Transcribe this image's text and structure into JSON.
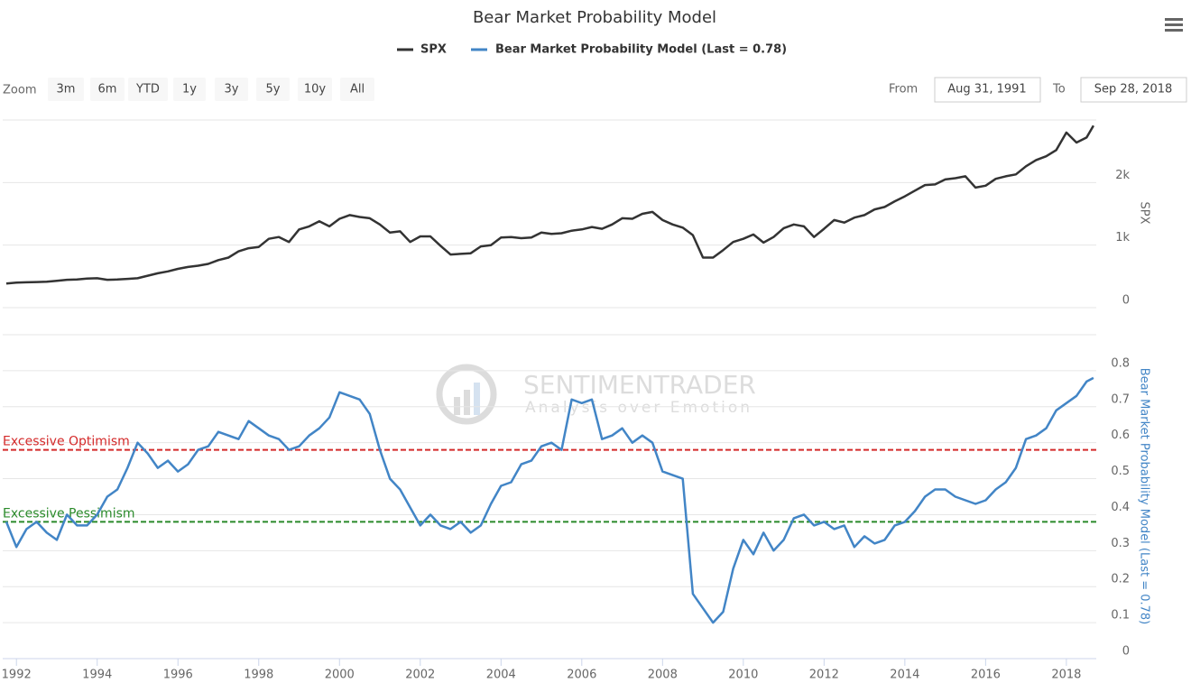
{
  "chart_data": {
    "type": "line",
    "title": "Bear Market Probability Model",
    "ylabel": "SPX",
    "y2label": "Bear Market Probability Model (Last = 0.78)",
    "x": [
      1991.75,
      1992,
      1992.25,
      1992.5,
      1992.75,
      1993,
      1993.25,
      1993.5,
      1993.75,
      1994,
      1994.25,
      1994.5,
      1994.75,
      1995,
      1995.25,
      1995.5,
      1995.75,
      1996,
      1996.25,
      1996.5,
      1996.75,
      1997,
      1997.25,
      1997.5,
      1997.75,
      1998,
      1998.25,
      1998.5,
      1998.75,
      1999,
      1999.25,
      1999.5,
      1999.75,
      2000,
      2000.25,
      2000.5,
      2000.75,
      2001,
      2001.25,
      2001.5,
      2001.75,
      2002,
      2002.25,
      2002.5,
      2002.75,
      2003,
      2003.25,
      2003.5,
      2003.75,
      2004,
      2004.25,
      2004.5,
      2004.75,
      2005,
      2005.25,
      2005.5,
      2005.75,
      2006,
      2006.25,
      2006.5,
      2006.75,
      2007,
      2007.25,
      2007.5,
      2007.75,
      2008,
      2008.25,
      2008.5,
      2008.75,
      2009,
      2009.25,
      2009.5,
      2009.75,
      2010,
      2010.25,
      2010.5,
      2010.75,
      2011,
      2011.25,
      2011.5,
      2011.75,
      2012,
      2012.25,
      2012.5,
      2012.75,
      2013,
      2013.25,
      2013.5,
      2013.75,
      2014,
      2014.25,
      2014.5,
      2014.75,
      2015,
      2015.25,
      2015.5,
      2015.75,
      2016,
      2016.25,
      2016.5,
      2016.75,
      2017,
      2017.25,
      2017.5,
      2017.75,
      2018,
      2018.25,
      2018.5,
      2018.67
    ],
    "series": [
      {
        "name": "SPX",
        "color": "#333333",
        "axis": "y",
        "values": [
          385,
          400,
          405,
          410,
          415,
          430,
          445,
          450,
          465,
          470,
          445,
          450,
          460,
          470,
          510,
          550,
          580,
          620,
          650,
          670,
          700,
          760,
          800,
          900,
          950,
          970,
          1100,
          1130,
          1050,
          1250,
          1300,
          1380,
          1300,
          1420,
          1480,
          1450,
          1430,
          1330,
          1200,
          1220,
          1050,
          1140,
          1140,
          990,
          850,
          860,
          870,
          980,
          1000,
          1120,
          1130,
          1110,
          1120,
          1200,
          1180,
          1190,
          1230,
          1250,
          1290,
          1260,
          1330,
          1430,
          1420,
          1500,
          1530,
          1400,
          1330,
          1280,
          1160,
          800,
          800,
          920,
          1050,
          1100,
          1170,
          1040,
          1130,
          1270,
          1330,
          1300,
          1130,
          1260,
          1400,
          1360,
          1440,
          1480,
          1570,
          1610,
          1700,
          1780,
          1870,
          1960,
          1970,
          2050,
          2070,
          2100,
          1920,
          1950,
          2060,
          2100,
          2130,
          2260,
          2360,
          2420,
          2520,
          2800,
          2640,
          2720,
          2910
        ]
      },
      {
        "name": "Bear Market Probability Model (Last = 0.78)",
        "color": "#4285c6",
        "axis": "y2",
        "values": [
          0.38,
          0.31,
          0.36,
          0.38,
          0.35,
          0.33,
          0.4,
          0.37,
          0.37,
          0.4,
          0.45,
          0.47,
          0.53,
          0.6,
          0.57,
          0.53,
          0.55,
          0.52,
          0.54,
          0.58,
          0.59,
          0.63,
          0.62,
          0.61,
          0.66,
          0.64,
          0.62,
          0.61,
          0.58,
          0.59,
          0.62,
          0.64,
          0.67,
          0.74,
          0.73,
          0.72,
          0.68,
          0.58,
          0.5,
          0.47,
          0.42,
          0.37,
          0.4,
          0.37,
          0.36,
          0.38,
          0.35,
          0.37,
          0.43,
          0.48,
          0.49,
          0.54,
          0.55,
          0.59,
          0.6,
          0.58,
          0.72,
          0.71,
          0.72,
          0.61,
          0.62,
          0.64,
          0.6,
          0.62,
          0.6,
          0.52,
          0.51,
          0.5,
          0.18,
          0.14,
          0.1,
          0.13,
          0.25,
          0.33,
          0.29,
          0.35,
          0.3,
          0.33,
          0.39,
          0.4,
          0.37,
          0.38,
          0.36,
          0.37,
          0.31,
          0.34,
          0.32,
          0.33,
          0.37,
          0.38,
          0.41,
          0.45,
          0.47,
          0.47,
          0.45,
          0.44,
          0.43,
          0.44,
          0.47,
          0.49,
          0.53,
          0.61,
          0.62,
          0.64,
          0.69,
          0.71,
          0.73,
          0.77,
          0.78
        ]
      }
    ],
    "xlim": [
      1991.66,
      2018.74
    ],
    "xticks": [
      1992,
      1994,
      1996,
      1998,
      2000,
      2002,
      2004,
      2006,
      2008,
      2010,
      2012,
      2014,
      2016,
      2018
    ],
    "ylim": [
      0,
      3000
    ],
    "yticks": [
      0,
      {
        "value": 1000,
        "label": "1k"
      },
      {
        "value": 2000,
        "label": "2k"
      }
    ],
    "y2lim": [
      0,
      0.9
    ],
    "y2ticks": [
      0,
      0.1,
      0.2,
      0.3,
      0.4,
      0.5,
      0.6,
      0.7,
      0.8
    ],
    "grid": true,
    "plot_lines": [
      {
        "value": 0.58,
        "label": "Excessive Optimism",
        "color": "#d42a2a"
      },
      {
        "value": 0.38,
        "label": "Excessive Pessimism",
        "color": "#2a8a2a"
      }
    ]
  },
  "range_selector": {
    "zoom_label": "Zoom",
    "buttons": [
      "3m",
      "6m",
      "YTD",
      "1y",
      "3y",
      "5y",
      "10y",
      "All"
    ],
    "from_label": "From",
    "from": "Aug 31, 1991",
    "to_label": "To",
    "to": "Sep 28, 2018"
  },
  "watermark": {
    "title": "SENTIMENTRADER",
    "subtitle": "Analysis over Emotion"
  }
}
